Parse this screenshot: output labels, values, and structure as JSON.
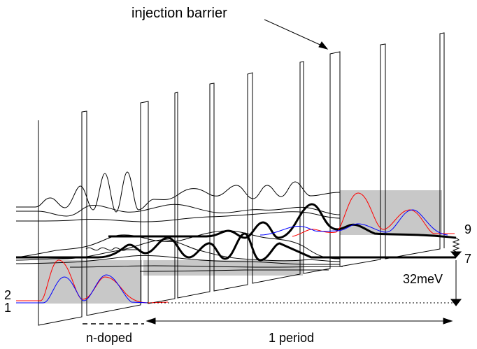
{
  "labels": {
    "injection_barrier": "injection barrier",
    "n_doped": "n-doped",
    "period": "1 period",
    "energy": "32meV",
    "level_1": "1",
    "level_2": "2",
    "level_7": "7",
    "level_9": "9"
  },
  "colors": {
    "background": "#ffffff",
    "ink": "#000000",
    "shade": "#c8c8c8",
    "red": "#ff0000",
    "blue": "#0000ff"
  }
}
